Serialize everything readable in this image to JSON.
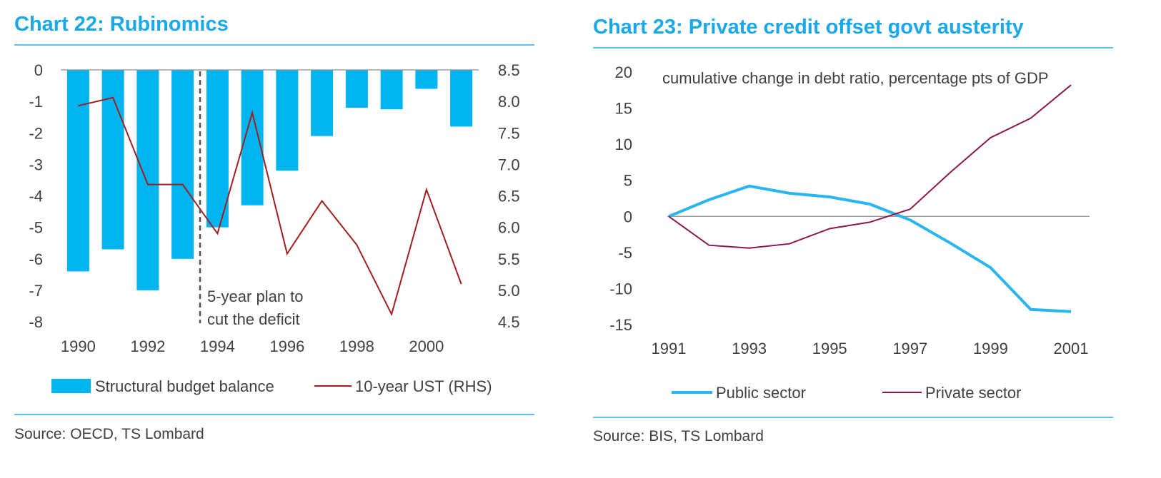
{
  "colors": {
    "accent": "#1aa9e8",
    "bar": "#00b4f0",
    "ust_line": "#a31d1d",
    "public": "#29b6f0",
    "private": "#8b1a4a",
    "rule": "#5bc3ea",
    "zero_line": "#8c8c8c"
  },
  "left": {
    "title": "Chart 22: Rubinomics",
    "source": "Source: OECD, TS Lombard",
    "annotation": [
      "5-year plan to",
      "cut the deficit"
    ],
    "legend": {
      "bars": "Structural budget balance",
      "line": "10-year UST (RHS)"
    }
  },
  "right": {
    "title": "Chart 23: Private credit offset govt austerity",
    "source": "Source: BIS, TS Lombard",
    "subtitle": "cumulative change in debt ratio, percentage pts of GDP",
    "legend": {
      "public": "Public sector",
      "private": "Private sector"
    }
  },
  "chart_data": [
    {
      "type": "bar",
      "title": "Chart 22: Rubinomics",
      "categories": [
        1990,
        1991,
        1992,
        1993,
        1994,
        1995,
        1996,
        1997,
        1998,
        1999,
        2000,
        2001
      ],
      "x_tick_labels": [
        "1990",
        "1992",
        "1994",
        "1996",
        "1998",
        "2000"
      ],
      "series": [
        {
          "name": "Structural budget balance",
          "type": "bar",
          "axis": "left",
          "values": [
            -6.4,
            -5.7,
            -7.0,
            -6.0,
            -5.0,
            -4.3,
            -3.2,
            -2.1,
            -1.2,
            -1.25,
            -0.6,
            -1.8
          ]
        },
        {
          "name": "10-year UST (RHS)",
          "type": "line",
          "axis": "right",
          "values": [
            7.93,
            8.06,
            6.68,
            6.68,
            5.9,
            7.82,
            5.58,
            6.42,
            5.72,
            4.62,
            6.6,
            5.1
          ]
        }
      ],
      "ylim_left": [
        -8,
        0
      ],
      "y_left_ticks": [
        "0",
        "-1",
        "-2",
        "-3",
        "-4",
        "-5",
        "-6",
        "-7",
        "-8"
      ],
      "ylim_right": [
        4.5,
        8.5
      ],
      "y_right_ticks": [
        "8.5",
        "8.0",
        "7.5",
        "7.0",
        "6.5",
        "6.0",
        "5.5",
        "5.0",
        "4.5"
      ],
      "annotation_x": 1993.5,
      "legend_position": "bottom",
      "grid": false
    },
    {
      "type": "line",
      "title": "Chart 23: Private credit offset govt austerity",
      "subtitle": "cumulative change in debt ratio, percentage pts of GDP",
      "x": [
        1991,
        1992,
        1993,
        1994,
        1995,
        1996,
        1997,
        1998,
        1999,
        2000,
        2001
      ],
      "x_tick_labels": [
        "1991",
        "1993",
        "1995",
        "1997",
        "1999",
        "2001"
      ],
      "series": [
        {
          "name": "Public sector",
          "values": [
            0,
            2.3,
            4.2,
            3.2,
            2.7,
            1.7,
            -0.5,
            -3.7,
            -7.1,
            -12.9,
            -13.2
          ]
        },
        {
          "name": "Private sector",
          "values": [
            0,
            -4.0,
            -4.4,
            -3.8,
            -1.7,
            -0.8,
            1.0,
            6.1,
            10.9,
            13.6,
            18.2
          ]
        }
      ],
      "ylim": [
        -15,
        20
      ],
      "y_ticks": [
        "20",
        "15",
        "10",
        "5",
        "0",
        "-5",
        "-10",
        "-15"
      ],
      "legend_position": "bottom",
      "grid": false
    }
  ]
}
